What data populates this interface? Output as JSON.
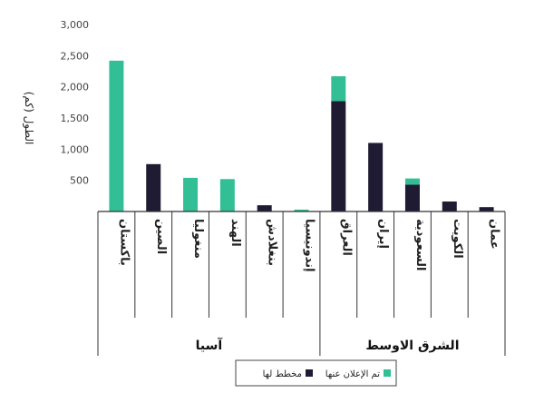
{
  "chart_data": {
    "type": "bar",
    "stacked": true,
    "ylabel": "الطول (كم)",
    "ylim": [
      0,
      3000
    ],
    "yticks": [
      "3,000",
      "2,500",
      "2,000",
      "1,500",
      "1,000",
      "500"
    ],
    "ytick_values": [
      3000,
      2500,
      2000,
      1500,
      1000,
      500
    ],
    "categories": [
      "باكستان",
      "الصين",
      "منغوليا",
      "الهند",
      "بنغلادش",
      "إندونيسيا",
      "العراق",
      "إيران",
      "السعودية",
      "الكويت",
      "عمان"
    ],
    "series": [
      {
        "name": "مخطط لها",
        "color": "#1e1b33",
        "values": [
          0,
          760,
          0,
          0,
          100,
          0,
          1770,
          1100,
          430,
          160,
          70
        ]
      },
      {
        "name": "تم الإعلان عنها",
        "color": "#33bf95",
        "values": [
          2420,
          0,
          540,
          520,
          0,
          30,
          400,
          0,
          100,
          0,
          0
        ]
      }
    ],
    "groups": [
      {
        "name": "آسيا",
        "categories": 6
      },
      {
        "name": "الشرق الاوسط",
        "categories": 5
      }
    ],
    "legend": {
      "placement": "bottom-center"
    }
  }
}
